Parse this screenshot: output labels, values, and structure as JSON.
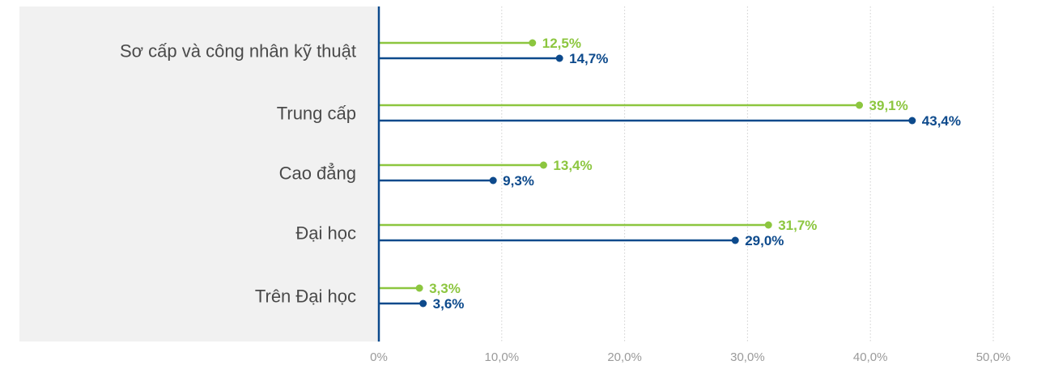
{
  "chart_data": {
    "type": "bar",
    "orientation": "horizontal",
    "categories": [
      "Sơ cấp và công nhân kỹ thuật",
      "Trung cấp",
      "Cao đẳng",
      "Đại học",
      "Trên Đại học"
    ],
    "series": [
      {
        "color": "#8cc63f",
        "values": [
          12.5,
          39.1,
          13.4,
          31.7,
          3.3
        ],
        "labels": [
          "12,5%",
          "39,1%",
          "13,4%",
          "31,7%",
          "3,3%"
        ]
      },
      {
        "color": "#0d4a8c",
        "values": [
          14.7,
          43.4,
          9.3,
          29.0,
          3.6
        ],
        "labels": [
          "14,7%",
          "43,4%",
          "9,3%",
          "29,0%",
          "3,6%"
        ]
      }
    ],
    "xlim": [
      0,
      50
    ],
    "x_ticks": [
      0,
      10,
      20,
      30,
      40,
      50
    ],
    "x_tick_labels": [
      "0%",
      "10,0%",
      "20,0%",
      "30,0%",
      "40,0%",
      "50,0%"
    ],
    "grid": "vertical-dotted",
    "legend": "none",
    "label_panel_color": "#f1f1f1",
    "axis_color": "#0d4a8c",
    "grid_color": "#cfcfcf",
    "tick_color": "#9a9a9a",
    "category_text_color": "#4a4a4a"
  }
}
